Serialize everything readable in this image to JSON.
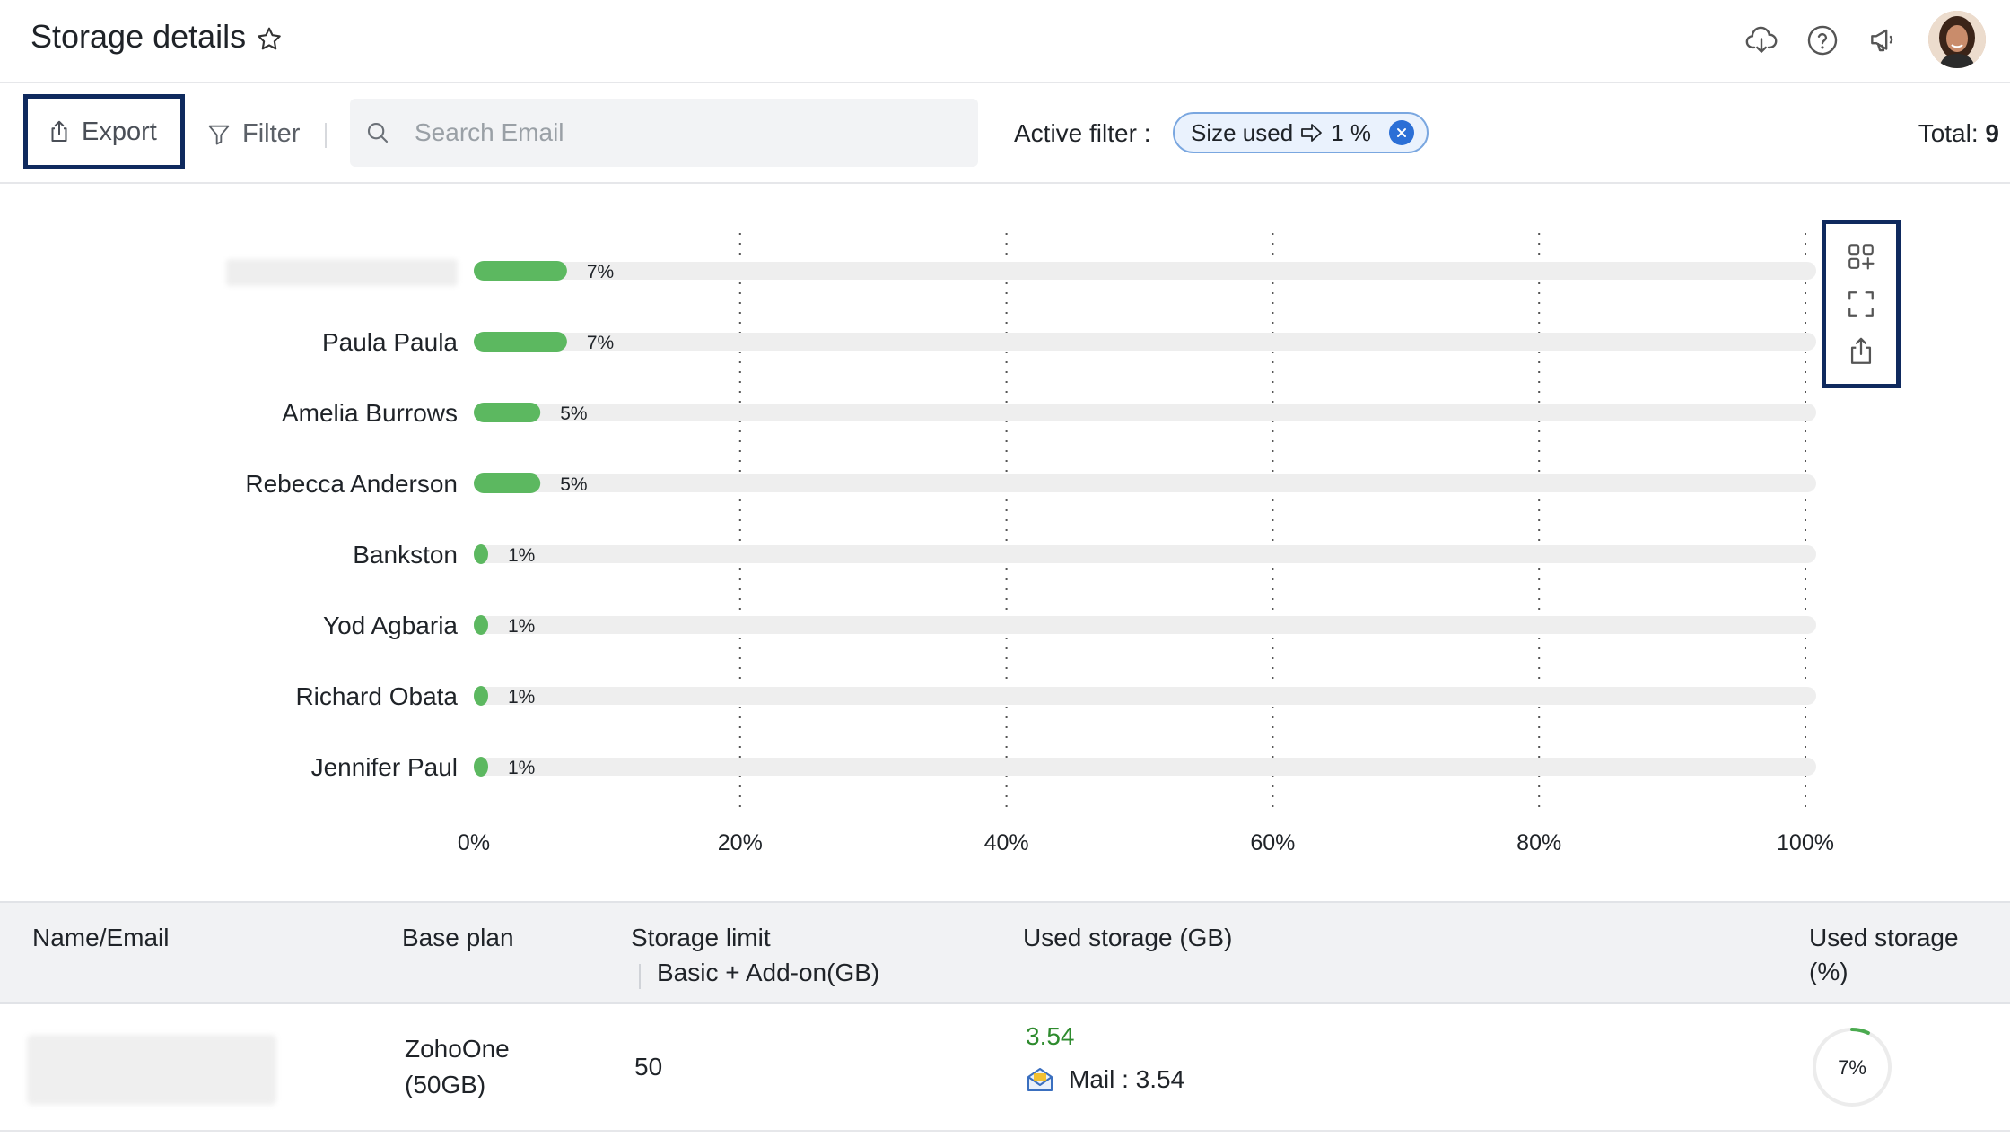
{
  "header": {
    "title": "Storage details"
  },
  "toolbar": {
    "export_label": "Export",
    "filter_label": "Filter",
    "search_placeholder": "Search Email",
    "active_filter_label": "Active filter :",
    "filter_chip": {
      "field": "Size used",
      "value": "1 %"
    },
    "total_label": "Total:",
    "total_value": "9"
  },
  "chart_data": {
    "type": "bar",
    "orientation": "horizontal",
    "categories": [
      "",
      "Paula Paula",
      "Amelia Burrows",
      "Rebecca Anderson",
      "Bankston",
      "Yod Agbaria",
      "Richard Obata",
      "Jennifer Paul"
    ],
    "values": [
      7,
      7,
      5,
      5,
      1,
      1,
      1,
      1
    ],
    "value_labels": [
      "7%",
      "7%",
      "5%",
      "5%",
      "1%",
      "1%",
      "1%",
      "1%"
    ],
    "x_ticks": [
      "0%",
      "20%",
      "40%",
      "60%",
      "80%",
      "100%"
    ],
    "xlim": [
      0,
      100
    ],
    "grid": "vertical-dotted",
    "bar_color": "#5cb860",
    "track_color": "#eeeeee"
  },
  "table": {
    "headers": {
      "name": "Name/Email",
      "plan": "Base plan",
      "limit": "Storage limit",
      "limit_sub": "Basic + Add-on(GB)",
      "used_gb": "Used storage (GB)",
      "used_pct_line1": "Used storage",
      "used_pct_line2": "(%)"
    },
    "rows": [
      {
        "plan_line1": "ZohoOne",
        "plan_line2": "(50GB)",
        "limit": "50",
        "used_gb": "3.54",
        "mail_label": "Mail : 3.54",
        "used_pct": "7%",
        "used_pct_value": 7
      }
    ]
  },
  "colors": {
    "accent": "#0f2a5e",
    "green": "#5cb860",
    "chip_border": "#7aa7e0",
    "chip_close": "#2b6fd6"
  },
  "icons": {
    "header": [
      "cloud-download-icon",
      "help-icon",
      "announcement-icon"
    ],
    "chart_tools": [
      "widgets-add-icon",
      "fullscreen-icon",
      "share-export-icon"
    ]
  }
}
